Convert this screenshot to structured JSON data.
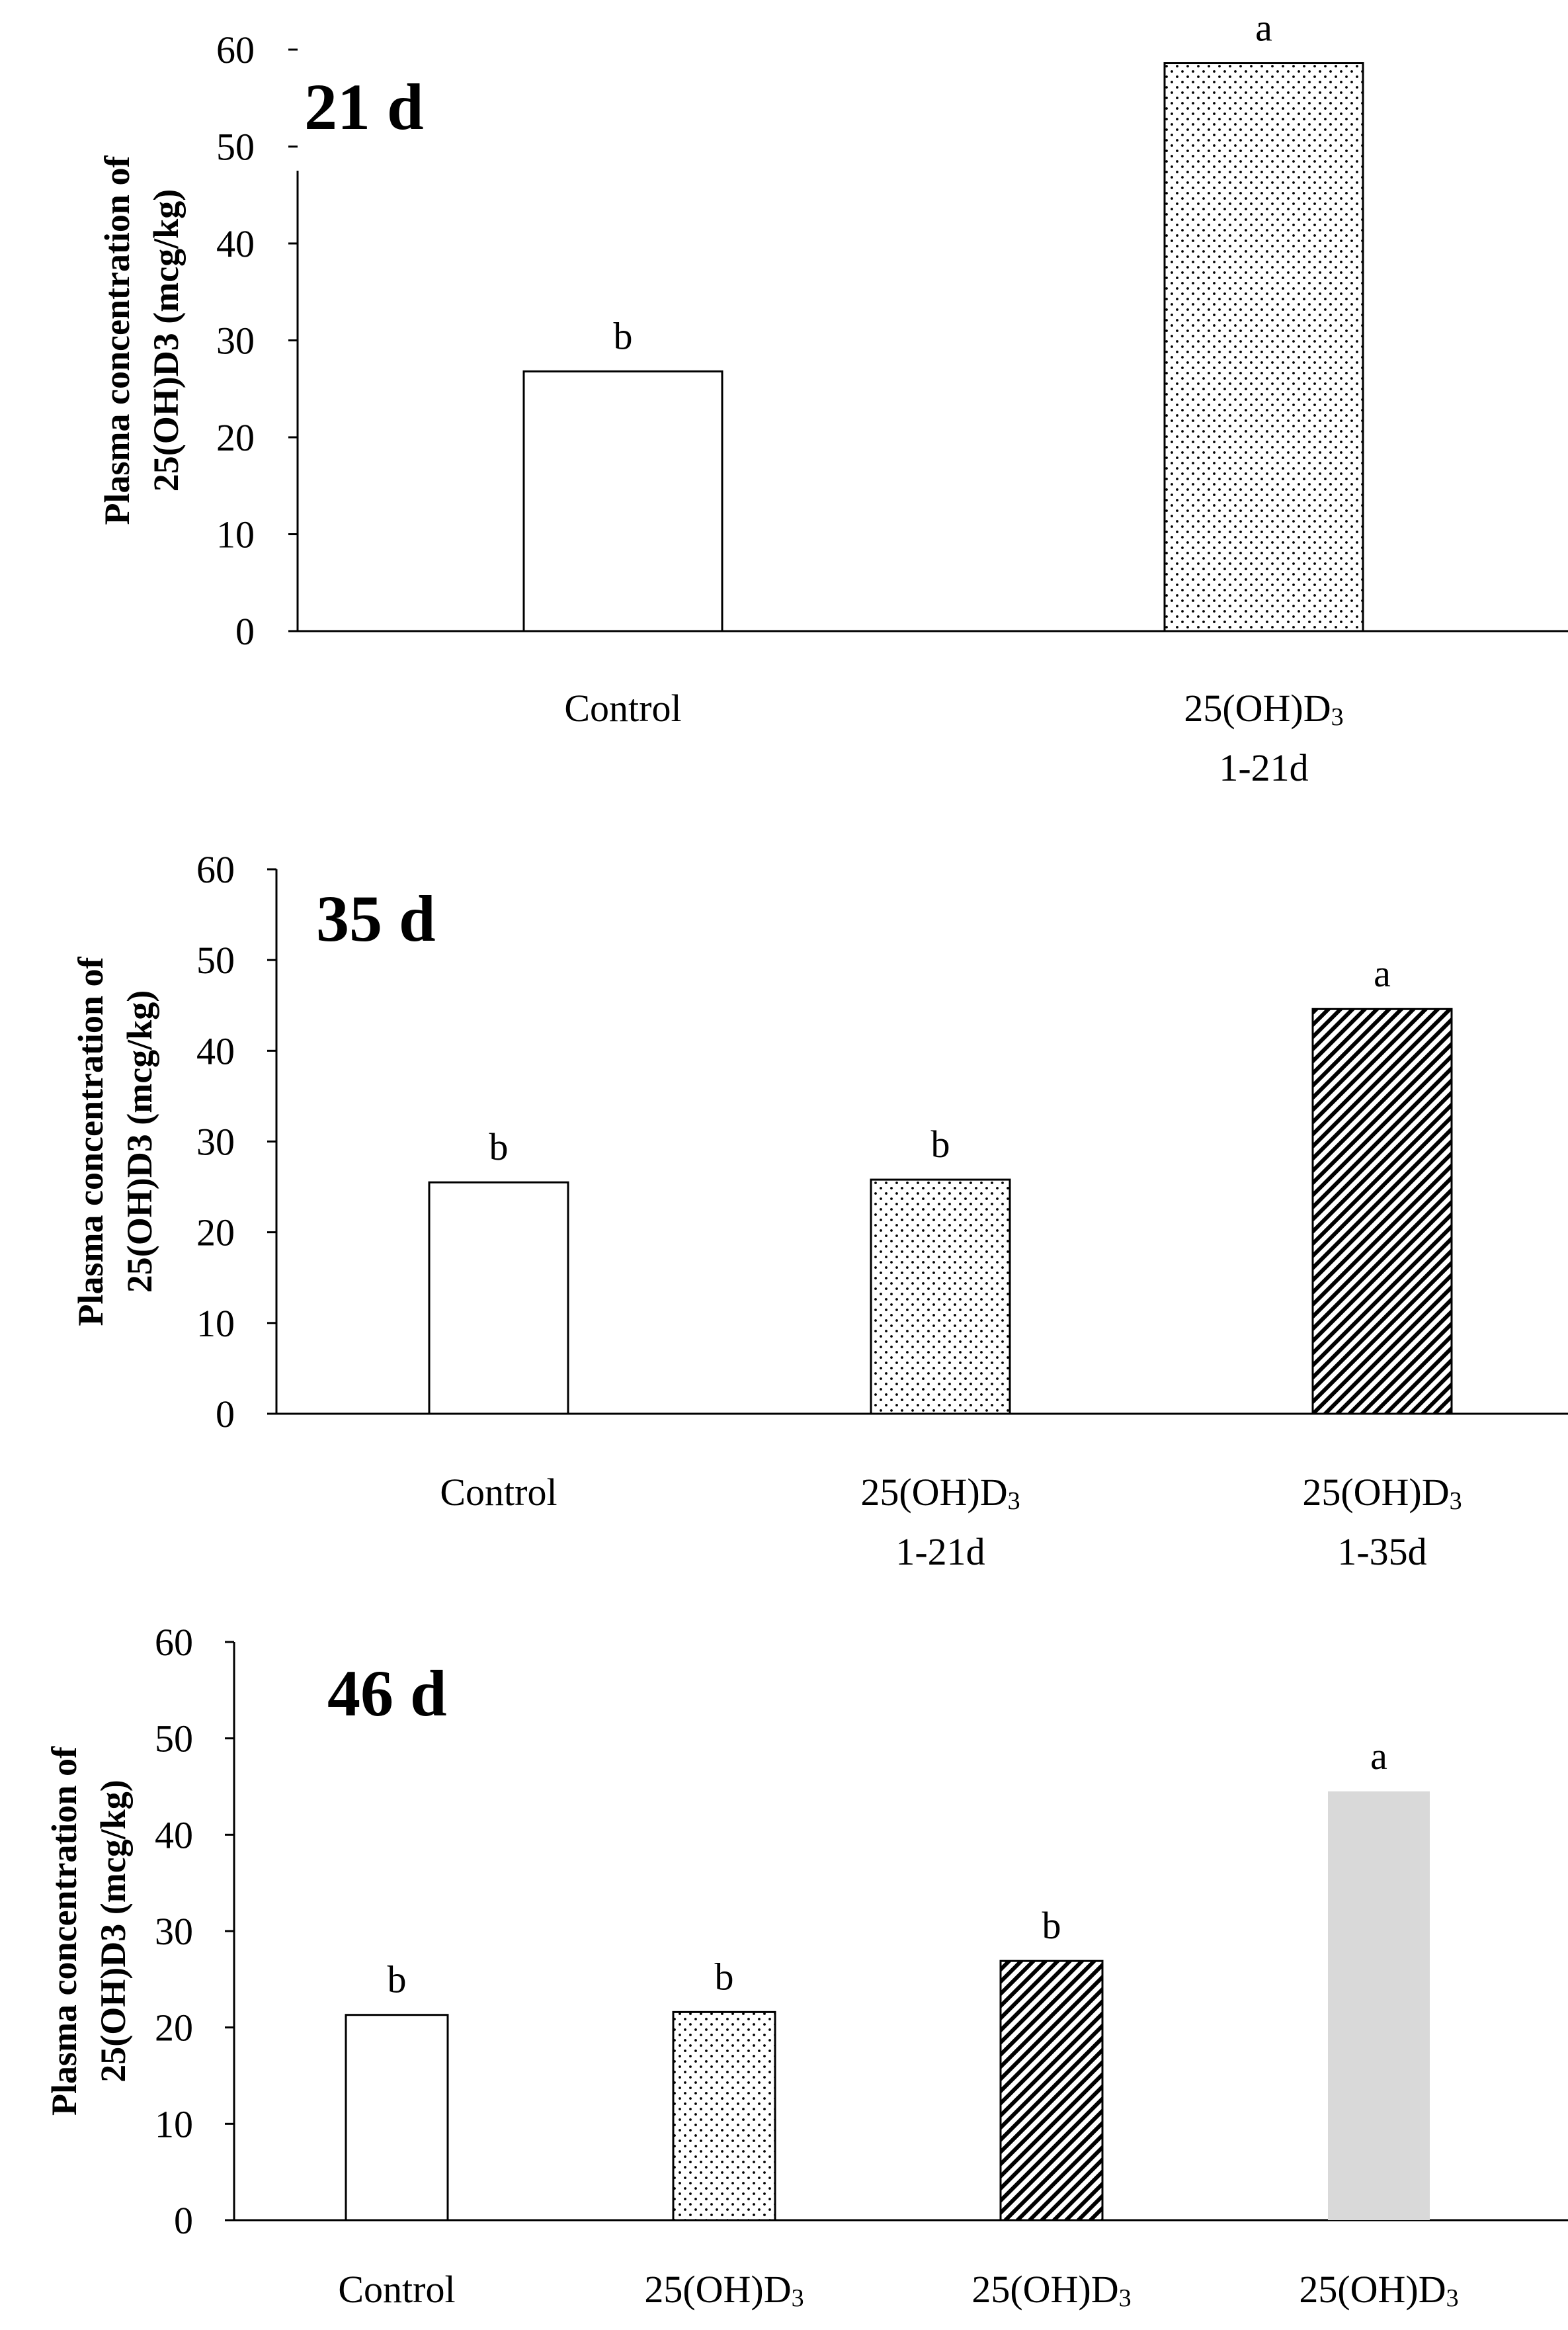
{
  "chart_data": [
    {
      "type": "bar",
      "panel_label": "21 d",
      "ylabel_lines": [
        "Plasma concentration of",
        "25(OH)D3 (mcg/kg)"
      ],
      "ylim": [
        0,
        60
      ],
      "yticks": [
        0,
        10,
        20,
        30,
        40,
        50,
        60
      ],
      "categories": [
        {
          "lines": [
            "Control"
          ]
        },
        {
          "lines": [
            "25(OH)D",
            "1-21d"
          ],
          "subscript": "3"
        }
      ],
      "values": [
        26.8,
        58.6
      ],
      "significance_letters": [
        "b",
        "a"
      ],
      "fills": [
        "white",
        "dots"
      ]
    },
    {
      "type": "bar",
      "panel_label": "35 d",
      "ylabel_lines": [
        "Plasma concentration of",
        "25(OH)D3 (mcg/kg)"
      ],
      "ylim": [
        0,
        60
      ],
      "yticks": [
        0,
        10,
        20,
        30,
        40,
        50,
        60
      ],
      "categories": [
        {
          "lines": [
            "Control"
          ]
        },
        {
          "lines": [
            "25(OH)D",
            "1-21d"
          ],
          "subscript": "3"
        },
        {
          "lines": [
            "25(OH)D",
            "1-35d"
          ],
          "subscript": "3"
        }
      ],
      "values": [
        25.5,
        25.8,
        44.6
      ],
      "significance_letters": [
        "b",
        "b",
        "a"
      ],
      "fills": [
        "white",
        "dots",
        "hatch"
      ]
    },
    {
      "type": "bar",
      "panel_label": "46 d",
      "ylabel_lines": [
        "Plasma concentration of",
        "25(OH)D3 (mcg/kg)"
      ],
      "ylim": [
        0,
        60
      ],
      "yticks": [
        0,
        10,
        20,
        30,
        40,
        50,
        60
      ],
      "categories": [
        {
          "lines": [
            "Control"
          ]
        },
        {
          "lines": [
            "25(OH)D"
          ],
          "subscript": "3"
        },
        {
          "lines": [
            "25(OH)D"
          ],
          "subscript": "3"
        },
        {
          "lines": [
            "25(OH)D"
          ],
          "subscript": "3"
        }
      ],
      "values": [
        21.3,
        21.6,
        26.9,
        44.5
      ],
      "significance_letters": [
        "b",
        "b",
        "b",
        "a"
      ],
      "fills": [
        "white",
        "dots",
        "hatch",
        "gray"
      ]
    }
  ]
}
